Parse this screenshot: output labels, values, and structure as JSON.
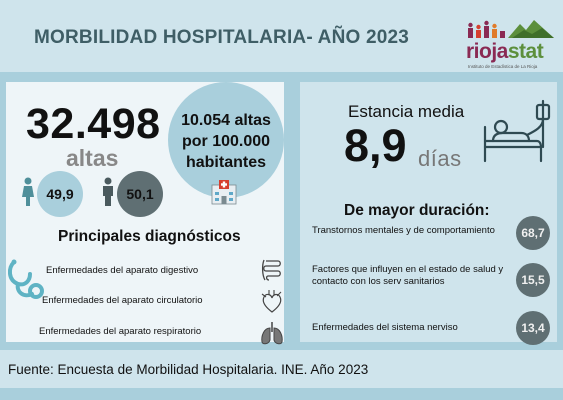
{
  "header": {
    "title": "MORBILIDAD HOSPITALARIA- AÑO 2023",
    "logo": {
      "name_part1": "rioja",
      "name_part2": "stat",
      "subtitle": "Instituto de Estadística de La Rioja"
    }
  },
  "summary": {
    "total_discharges": "32.498",
    "discharges_label": "altas",
    "female_pct": "49,9",
    "male_pct": "50,1",
    "rate_text": "10.054 altas por 100.000 habitantes",
    "icons": [
      "female-icon",
      "male-icon",
      "hospital-icon"
    ]
  },
  "diagnoses": {
    "title": "Principales diagnósticos",
    "items": [
      {
        "label": "Enfermedades del aparato digestivo",
        "icon": "intestine-icon"
      },
      {
        "label": "Enfermedades del aparato circulatorio",
        "icon": "heart-icon"
      },
      {
        "label": "Enfermedades del aparato respiratorio",
        "icon": "lungs-icon"
      }
    ]
  },
  "stay": {
    "label": "Estancia media",
    "value": "8,9",
    "unit": "días",
    "icon": "hospital-bed-icon"
  },
  "longest": {
    "title": "De mayor duración:",
    "items": [
      {
        "label": "Transtornos mentales y de comportamiento",
        "value": "68,7"
      },
      {
        "label": "Factores que influyen en el estado de salud y contacto con los serv sanitarios",
        "value": "15,5"
      },
      {
        "label": "Enfermedades del sistema nerviso",
        "value": "13,4"
      }
    ]
  },
  "footer": {
    "source": "Fuente: Encuesta de Morbilidad Hospitalaria. INE. Año 2023"
  },
  "colors": {
    "background": "#a9cfdc",
    "panel_light": "#eef5f8",
    "panel_blue": "#cfe4ec",
    "circle_dark": "#5f6f73",
    "title": "#3f5e66",
    "logo_primary": "#8a2a53",
    "logo_secondary": "#5c8f3c"
  }
}
